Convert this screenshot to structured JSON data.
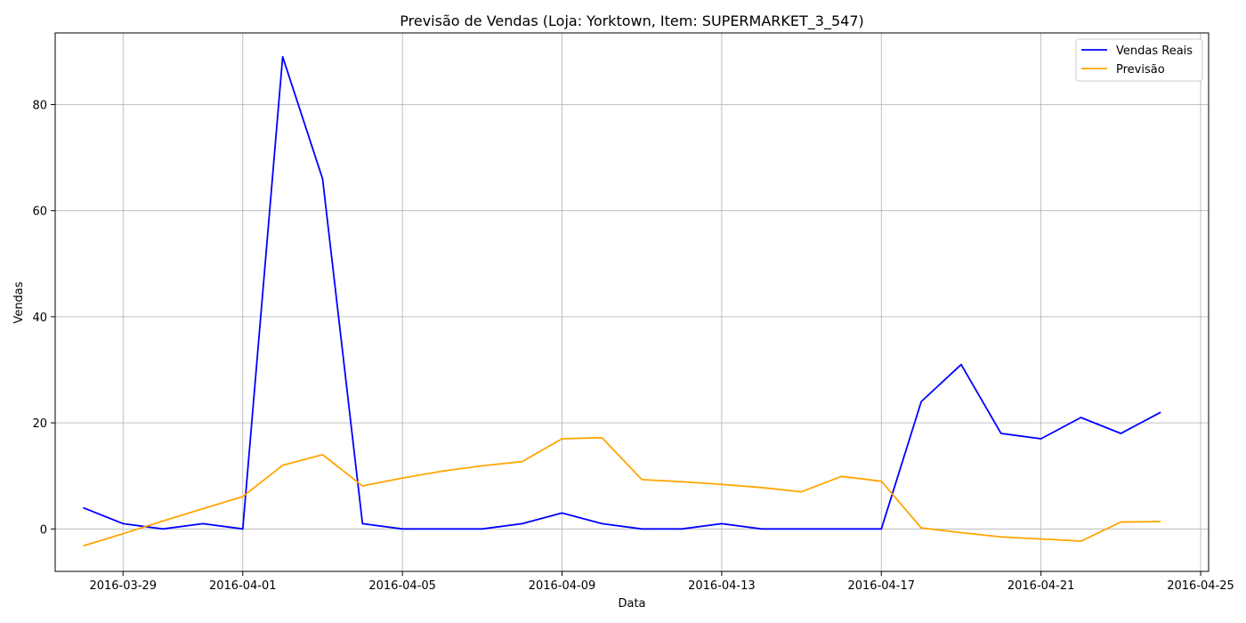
{
  "chart_data": {
    "type": "line",
    "title": "Previsão de Vendas (Loja: Yorktown, Item: SUPERMARKET_3_547)",
    "xlabel": "Data",
    "ylabel": "Vendas",
    "grid": true,
    "legend_position": "top-right",
    "x": [
      "2016-03-28",
      "2016-03-29",
      "2016-03-30",
      "2016-03-31",
      "2016-04-01",
      "2016-04-02",
      "2016-04-03",
      "2016-04-04",
      "2016-04-05",
      "2016-04-06",
      "2016-04-07",
      "2016-04-08",
      "2016-04-09",
      "2016-04-10",
      "2016-04-11",
      "2016-04-12",
      "2016-04-13",
      "2016-04-14",
      "2016-04-15",
      "2016-04-16",
      "2016-04-17",
      "2016-04-18",
      "2016-04-19",
      "2016-04-20",
      "2016-04-21",
      "2016-04-22",
      "2016-04-23",
      "2016-04-24"
    ],
    "xlim": [
      "2016-03-27.3",
      "2016-04-25.2"
    ],
    "ylim": [
      -8,
      93.5
    ],
    "x_ticks": [
      "2016-03-29",
      "2016-04-01",
      "2016-04-05",
      "2016-04-09",
      "2016-04-13",
      "2016-04-17",
      "2016-04-21",
      "2016-04-25"
    ],
    "y_ticks": [
      0,
      20,
      40,
      60,
      80
    ],
    "series": [
      {
        "name": "Vendas Reais",
        "color": "#0000ff",
        "values": [
          4,
          1,
          0,
          1,
          0,
          89,
          66,
          1,
          0,
          0,
          0,
          1,
          3,
          1,
          0,
          0,
          1,
          0,
          0,
          0,
          0,
          24,
          31,
          18,
          17,
          21,
          18,
          22
        ]
      },
      {
        "name": "Previsão",
        "color": "#ffa500",
        "values": [
          -3.2,
          -0.9,
          1.5,
          3.8,
          6.1,
          12.0,
          14.0,
          8.1,
          9.6,
          10.9,
          11.9,
          12.7,
          17.0,
          17.2,
          9.3,
          8.9,
          8.4,
          7.8,
          7.0,
          9.9,
          9.0,
          0.2,
          -0.7,
          -1.5,
          -1.9,
          -2.3,
          1.3,
          1.4
        ]
      }
    ]
  }
}
